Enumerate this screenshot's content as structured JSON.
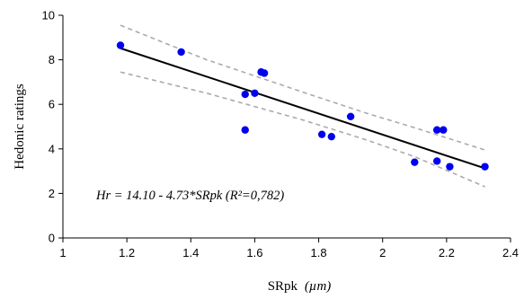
{
  "chart_data": {
    "type": "scatter",
    "xlabel": "SRpk",
    "xlabel_unit": "(µm)",
    "ylabel": "Hedonic  ratings",
    "xlim": [
      1,
      2.4
    ],
    "ylim": [
      0,
      10
    ],
    "x_ticks": [
      "1",
      "1.2",
      "1.4",
      "1.6",
      "1.8",
      "2",
      "2.2",
      "2.4"
    ],
    "y_ticks": [
      "0",
      "2",
      "4",
      "6",
      "8",
      "10"
    ],
    "grid": false,
    "annotation": "Hr = 14.10 - 4.73*SRpk (R²=0,782)",
    "colors": {
      "points": "#0000ee",
      "fit": "#000000",
      "ci": "#aaaaaa"
    },
    "points": [
      {
        "x": 1.18,
        "y": 8.65
      },
      {
        "x": 1.37,
        "y": 8.35
      },
      {
        "x": 1.57,
        "y": 6.45
      },
      {
        "x": 1.57,
        "y": 4.85
      },
      {
        "x": 1.6,
        "y": 6.5
      },
      {
        "x": 1.62,
        "y": 7.45
      },
      {
        "x": 1.63,
        "y": 7.4
      },
      {
        "x": 1.81,
        "y": 4.65
      },
      {
        "x": 1.84,
        "y": 4.55
      },
      {
        "x": 1.9,
        "y": 5.45
      },
      {
        "x": 2.1,
        "y": 3.4
      },
      {
        "x": 2.17,
        "y": 4.85
      },
      {
        "x": 2.19,
        "y": 4.85
      },
      {
        "x": 2.17,
        "y": 3.45
      },
      {
        "x": 2.21,
        "y": 3.2
      },
      {
        "x": 2.32,
        "y": 3.2
      }
    ],
    "fit_line": {
      "intercept": 14.1,
      "slope": -4.73,
      "x_range": [
        1.18,
        2.32
      ]
    },
    "confidence_band": {
      "upper": [
        [
          1.18,
          9.55
        ],
        [
          1.45,
          8.0
        ],
        [
          1.75,
          6.55
        ],
        [
          1.95,
          5.6
        ],
        [
          2.1,
          4.95
        ],
        [
          2.32,
          3.95
        ]
      ],
      "lower": [
        [
          1.18,
          7.45
        ],
        [
          1.45,
          6.5
        ],
        [
          1.75,
          5.3
        ],
        [
          1.95,
          4.4
        ],
        [
          2.1,
          3.65
        ],
        [
          2.32,
          2.3
        ]
      ]
    }
  }
}
